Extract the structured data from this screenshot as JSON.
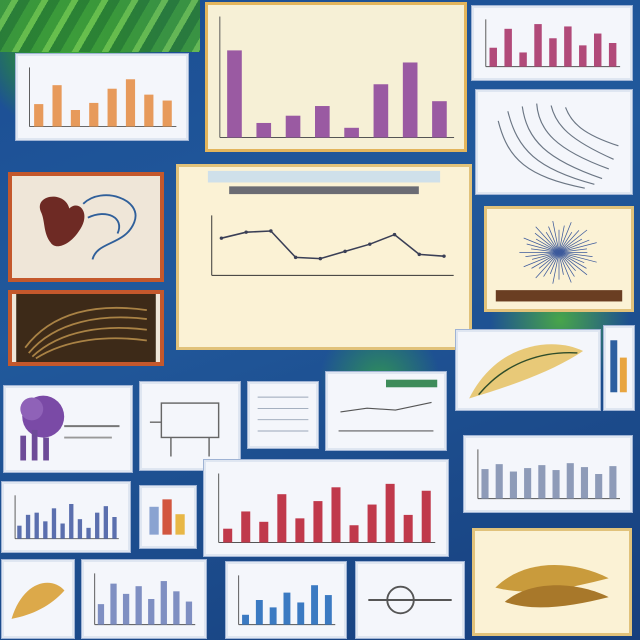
{
  "canvas": {
    "width": 640,
    "height": 640
  },
  "palette": {
    "board_blue": "#1e4f93",
    "leaf_green": "#3c9a3a",
    "frame_gold": "#e3b55c",
    "frame_red": "#c4582c",
    "bar_orange": "#e79a5b",
    "bar_purple": "#9a5aa2",
    "bar_red": "#c0394b",
    "line_dark": "#3a3f56"
  },
  "featured_chart": {
    "type": "line",
    "title": "",
    "subtitle": "",
    "xlabel": "",
    "ylabel": "",
    "x": [
      1,
      2,
      3,
      4,
      5,
      6,
      7,
      8,
      9,
      10
    ],
    "values": [
      62,
      72,
      74,
      30,
      28,
      40,
      52,
      68,
      35,
      32
    ],
    "ylim": [
      0,
      100
    ]
  },
  "mini_charts": [
    {
      "type": "bar",
      "values": [
        38,
        70,
        28,
        40,
        64,
        80,
        54,
        44
      ],
      "ylim": [
        0,
        100
      ]
    },
    {
      "type": "bar",
      "values": [
        72,
        12,
        18,
        26,
        8,
        44,
        62,
        30
      ],
      "ylim": [
        0,
        100
      ]
    },
    {
      "type": "bar",
      "values": [
        40,
        80,
        30,
        90,
        60,
        85,
        45,
        70,
        50
      ],
      "ylim": [
        0,
        100
      ]
    },
    {
      "type": "bar",
      "values": [
        30,
        55,
        60,
        40,
        70,
        35,
        80,
        45,
        25,
        60,
        75,
        50
      ],
      "ylim": [
        0,
        100
      ]
    },
    {
      "type": "bar",
      "values": [
        60,
        70,
        55,
        62,
        68,
        58,
        72,
        64,
        50,
        66
      ],
      "ylim": [
        0,
        100
      ]
    },
    {
      "type": "bar",
      "values": [
        20,
        45,
        30,
        70,
        35,
        60,
        80,
        25,
        55,
        85,
        40,
        75
      ],
      "ylim": [
        0,
        100
      ]
    },
    {
      "type": "bar",
      "values": [
        40,
        80,
        60,
        75,
        50,
        85,
        65,
        45
      ],
      "ylim": [
        0,
        100
      ]
    },
    {
      "type": "bar",
      "values": [
        20,
        50,
        35,
        65,
        45,
        80,
        60
      ],
      "ylim": [
        0,
        100
      ]
    }
  ]
}
